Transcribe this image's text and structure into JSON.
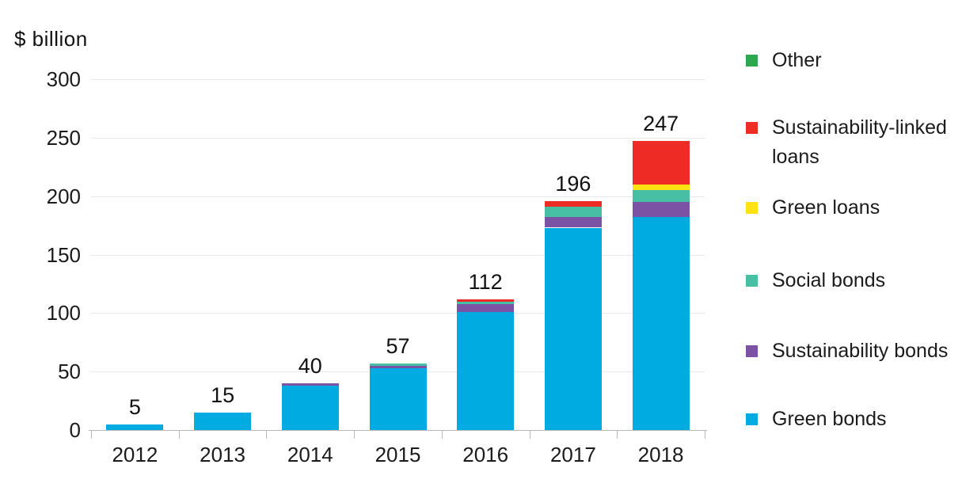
{
  "title": {
    "y_unit_label": "$ billion"
  },
  "chart_data": {
    "type": "bar",
    "stacked": true,
    "title": "",
    "ylabel": "$ billion",
    "xlabel": "",
    "categories": [
      "2012",
      "2013",
      "2014",
      "2015",
      "2016",
      "2017",
      "2018"
    ],
    "totals": [
      5,
      15,
      40,
      57,
      112,
      196,
      247
    ],
    "series": [
      {
        "name": "Green bonds",
        "color": "#00ABE1",
        "values": [
          5,
          15,
          38,
          53,
          101,
          173,
          182
        ]
      },
      {
        "name": "Sustainability bonds",
        "color": "#7C53A4",
        "values": [
          0,
          0,
          2,
          2,
          7,
          9,
          13
        ]
      },
      {
        "name": "Social bonds",
        "color": "#47BFA4",
        "values": [
          0,
          0,
          0,
          2,
          2,
          9,
          10
        ]
      },
      {
        "name": "Green loans",
        "color": "#FFE214",
        "values": [
          0,
          0,
          0,
          0,
          0,
          0,
          5
        ]
      },
      {
        "name": "Sustainability-linked loans",
        "color": "#EE2B24",
        "values": [
          0,
          0,
          0,
          0,
          2,
          5,
          37
        ]
      },
      {
        "name": "Other",
        "color": "#2CA94E",
        "values": [
          0,
          0,
          0,
          0,
          0,
          0,
          0
        ]
      }
    ],
    "yticks": [
      0,
      50,
      100,
      150,
      200,
      250,
      300
    ],
    "ylim": [
      0,
      300
    ],
    "grid": "horizontal",
    "legend_position": "right",
    "legend_order": [
      "Other",
      "Sustainability-linked loans",
      "Green loans",
      "Social bonds",
      "Sustainability bonds",
      "Green bonds"
    ]
  },
  "colors": {
    "grid": "#e9e9e9",
    "axis": "#b9b9b9",
    "text": "#1b1b1b"
  }
}
